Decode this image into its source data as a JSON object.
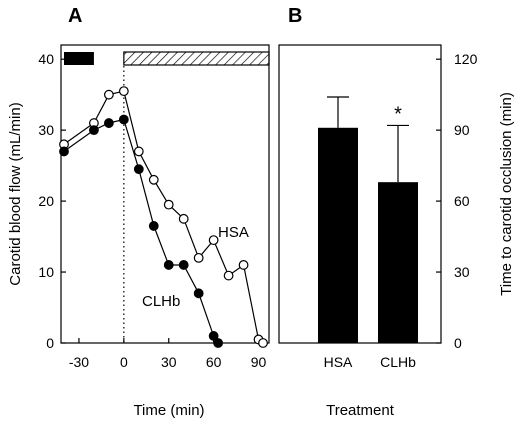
{
  "chart_data": [
    {
      "panel": "A",
      "type": "line",
      "xlabel": "Time (min)",
      "ylabel": "Carotid blood flow (mL/min)",
      "xlim": [
        -42,
        97
      ],
      "ylim": [
        0,
        42
      ],
      "xticks": [
        -30,
        0,
        30,
        60,
        90
      ],
      "yticks": [
        0,
        10,
        20,
        30,
        40
      ],
      "bars_legend": {
        "solid": [
          -40,
          -20
        ],
        "hatched": [
          0,
          97
        ]
      },
      "vline_x": 0,
      "series": [
        {
          "name": "HSA",
          "marker": "open",
          "x": [
            -40,
            -20,
            -10,
            0,
            10,
            20,
            30,
            40,
            50,
            60,
            70,
            80,
            90,
            93
          ],
          "y": [
            28,
            31,
            35,
            35.5,
            27,
            23,
            19.5,
            17.5,
            12,
            14.5,
            9.5,
            11,
            0.5,
            0
          ]
        },
        {
          "name": "CLHb",
          "marker": "filled",
          "x": [
            -40,
            -20,
            -10,
            0,
            10,
            20,
            30,
            40,
            50,
            60,
            63
          ],
          "y": [
            27,
            30,
            31,
            31.5,
            24.5,
            16.5,
            11,
            11,
            7,
            1,
            0
          ]
        }
      ]
    },
    {
      "panel": "B",
      "type": "bar",
      "xlabel": "Treatment",
      "ylabel": "Time to carotid occlusion (min)",
      "categories": [
        "HSA",
        "CLHb"
      ],
      "values": [
        91,
        68
      ],
      "errors": [
        13,
        24
      ],
      "annotations": [
        "",
        "*"
      ],
      "ylim": [
        0,
        126
      ],
      "yticks": [
        0,
        30,
        60,
        90,
        120
      ]
    }
  ]
}
